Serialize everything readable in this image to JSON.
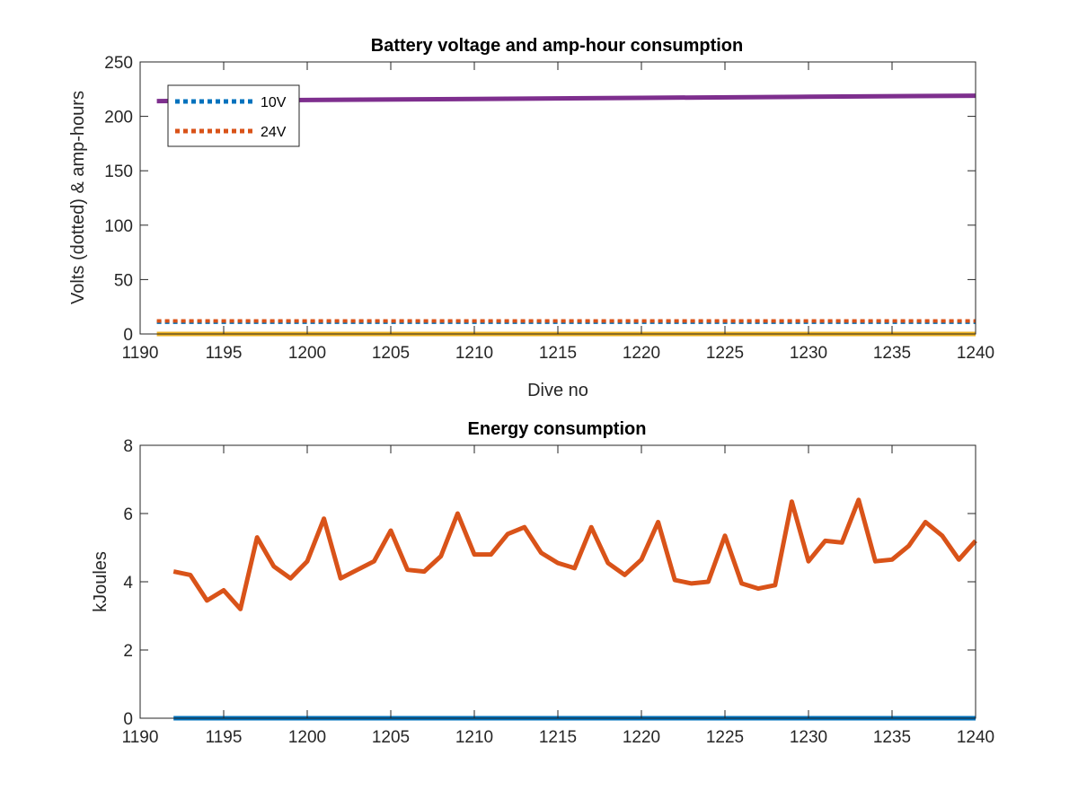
{
  "chart_data": [
    {
      "type": "line",
      "title": "Battery voltage and amp-hour consumption",
      "xlabel": "Dive no",
      "ylabel": "Volts (dotted) & amp-hours",
      "xlim": [
        1190,
        1240
      ],
      "ylim": [
        0,
        250
      ],
      "xticks": [
        1190,
        1195,
        1200,
        1205,
        1210,
        1215,
        1220,
        1225,
        1230,
        1235,
        1240
      ],
      "yticks": [
        0,
        50,
        100,
        150,
        200,
        250
      ],
      "grid": false,
      "legend": "top-left",
      "series": [
        {
          "name": "10V",
          "style": "dotted",
          "color": "#0072BD",
          "x": [
            1191,
            1240
          ],
          "y": [
            10.8,
            10.8
          ]
        },
        {
          "name": "24V",
          "style": "dotted",
          "color": "#D95319",
          "x": [
            1191,
            1240
          ],
          "y": [
            12,
            12
          ]
        },
        {
          "style": "solid",
          "color": "#EDB120",
          "x": [
            1191,
            1240
          ],
          "y": [
            0,
            0
          ]
        },
        {
          "style": "solid",
          "color": "#7E2F8E",
          "x": [
            1191,
            1200,
            1210,
            1220,
            1230,
            1240
          ],
          "y": [
            214,
            215,
            216,
            217,
            218,
            219
          ]
        }
      ]
    },
    {
      "type": "line",
      "title": "Energy consumption",
      "xlabel": "",
      "ylabel": "kJoules",
      "xlim": [
        1190,
        1240
      ],
      "ylim": [
        0,
        8
      ],
      "xticks": [
        1190,
        1195,
        1200,
        1205,
        1210,
        1215,
        1220,
        1225,
        1230,
        1235,
        1240
      ],
      "yticks": [
        0,
        2,
        4,
        6,
        8
      ],
      "grid": false,
      "series": [
        {
          "style": "solid",
          "color": "#0072BD",
          "x": [
            1192,
            1240
          ],
          "y": [
            0,
            0
          ]
        },
        {
          "style": "solid",
          "color": "#D95319",
          "x": [
            1192,
            1193,
            1194,
            1195,
            1196,
            1197,
            1198,
            1199,
            1200,
            1201,
            1202,
            1203,
            1204,
            1205,
            1206,
            1207,
            1208,
            1209,
            1210,
            1211,
            1212,
            1213,
            1214,
            1215,
            1216,
            1217,
            1218,
            1219,
            1220,
            1221,
            1222,
            1223,
            1224,
            1225,
            1226,
            1227,
            1228,
            1229,
            1230,
            1231,
            1232,
            1233,
            1234,
            1235,
            1236,
            1237,
            1238,
            1239,
            1240
          ],
          "y": [
            4.3,
            4.2,
            3.45,
            3.75,
            3.2,
            5.3,
            4.45,
            4.1,
            4.6,
            5.85,
            4.1,
            4.35,
            4.6,
            5.5,
            4.35,
            4.3,
            4.75,
            6.0,
            4.8,
            4.8,
            5.4,
            5.6,
            4.85,
            4.55,
            4.4,
            5.6,
            4.55,
            4.2,
            4.65,
            5.75,
            4.05,
            3.95,
            4.0,
            5.35,
            3.95,
            3.8,
            3.9,
            6.35,
            4.6,
            5.2,
            5.15,
            6.4,
            4.6,
            4.65,
            5.05,
            5.75,
            5.35,
            4.65,
            5.2
          ]
        }
      ]
    }
  ]
}
